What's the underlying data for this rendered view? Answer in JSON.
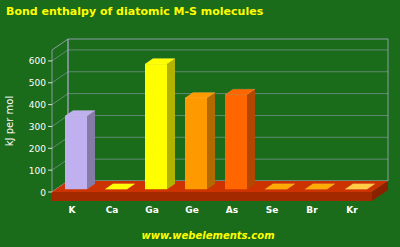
{
  "chart_data": {
    "type": "bar3d",
    "title": "Bond enthalpy of diatomic M-S molecules",
    "y_label": "kJ per mol",
    "annotations": [
      "www.webelements.com"
    ],
    "categories": [
      "K",
      "Ca",
      "Ga",
      "Ge",
      "As",
      "Se",
      "Br",
      "Kr"
    ],
    "values": [
      335,
      0,
      573,
      418,
      433,
      0,
      0,
      0
    ],
    "colors": [
      "#c0b0f0",
      "#ffff00",
      "#ffff00",
      "#ff9900",
      "#ff6600",
      "#ffaa00",
      "#ffaa00",
      "#ffcc44"
    ],
    "ylim": [
      0,
      650
    ],
    "yticks": [
      0,
      100,
      200,
      300,
      400,
      500,
      600
    ],
    "grid": true
  }
}
